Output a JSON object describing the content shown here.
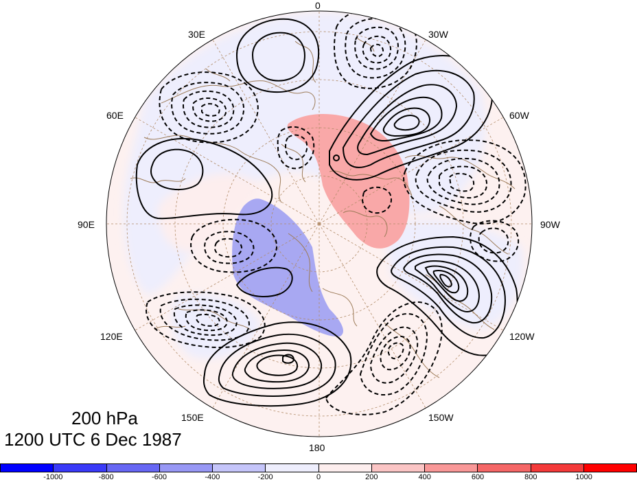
{
  "map": {
    "projection": "north-polar-stereographic",
    "longitude_labels": [
      {
        "name": "lon-0",
        "text": "0"
      },
      {
        "name": "lon-30e",
        "text": "30E"
      },
      {
        "name": "lon-30w",
        "text": "30W"
      },
      {
        "name": "lon-60e",
        "text": "60E"
      },
      {
        "name": "lon-60w",
        "text": "60W"
      },
      {
        "name": "lon-90e",
        "text": "90E"
      },
      {
        "name": "lon-90w",
        "text": "90W"
      },
      {
        "name": "lon-120e",
        "text": "120E"
      },
      {
        "name": "lon-120w",
        "text": "120W"
      },
      {
        "name": "lon-150e",
        "text": "150E"
      },
      {
        "name": "lon-150w",
        "text": "150W"
      },
      {
        "name": "lon-180",
        "text": "180"
      }
    ],
    "contour_style": {
      "positive": "solid",
      "negative": "dashed",
      "color": "#000000"
    },
    "coastline_color": "#9c7b58",
    "grid_color": "#b08a66"
  },
  "caption": {
    "level": "200 hPa",
    "time": "1200 UTC 6 Dec 1987"
  },
  "colorbar": {
    "colors": [
      "#0000ff",
      "#3a3af8",
      "#6767f4",
      "#9898f5",
      "#c5c5fa",
      "#eeeefd",
      "#fdeeee",
      "#fbc5c5",
      "#f99898",
      "#f56767",
      "#f43a3a",
      "#ff0000"
    ],
    "tick_labels": [
      "-1000",
      "-800",
      "-600",
      "-400",
      "-200",
      "0",
      "200",
      "400",
      "600",
      "800",
      "1000"
    ]
  }
}
